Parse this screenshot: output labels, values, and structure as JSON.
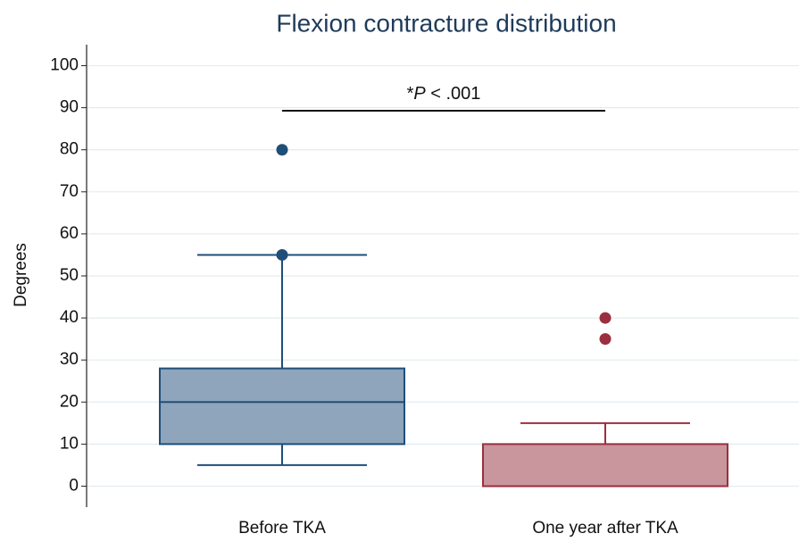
{
  "chart_data": {
    "type": "box",
    "title": "Flexion contracture distribution",
    "ylabel": "Degrees",
    "categories": [
      "Before TKA",
      "One year after TKA"
    ],
    "boxes": [
      {
        "whisker_low": 5,
        "q1": 10,
        "median": 20,
        "q3": 28,
        "whisker_high": 55,
        "outliers": [
          80,
          55
        ],
        "color": "#1f4e79",
        "fill": "#8fa5bb"
      },
      {
        "whisker_low": 0,
        "q1": 0,
        "median": 0,
        "q3": 10,
        "whisker_high": 15,
        "outliers": [
          40,
          35
        ],
        "color": "#9b2f3f",
        "fill": "#c8969c"
      }
    ],
    "annotation": [
      "*",
      "P",
      " < .001"
    ],
    "ylim": [
      -5,
      105
    ],
    "yticks": [
      0,
      10,
      20,
      30,
      40,
      50,
      60,
      70,
      80,
      90,
      100
    ],
    "grid": true
  }
}
